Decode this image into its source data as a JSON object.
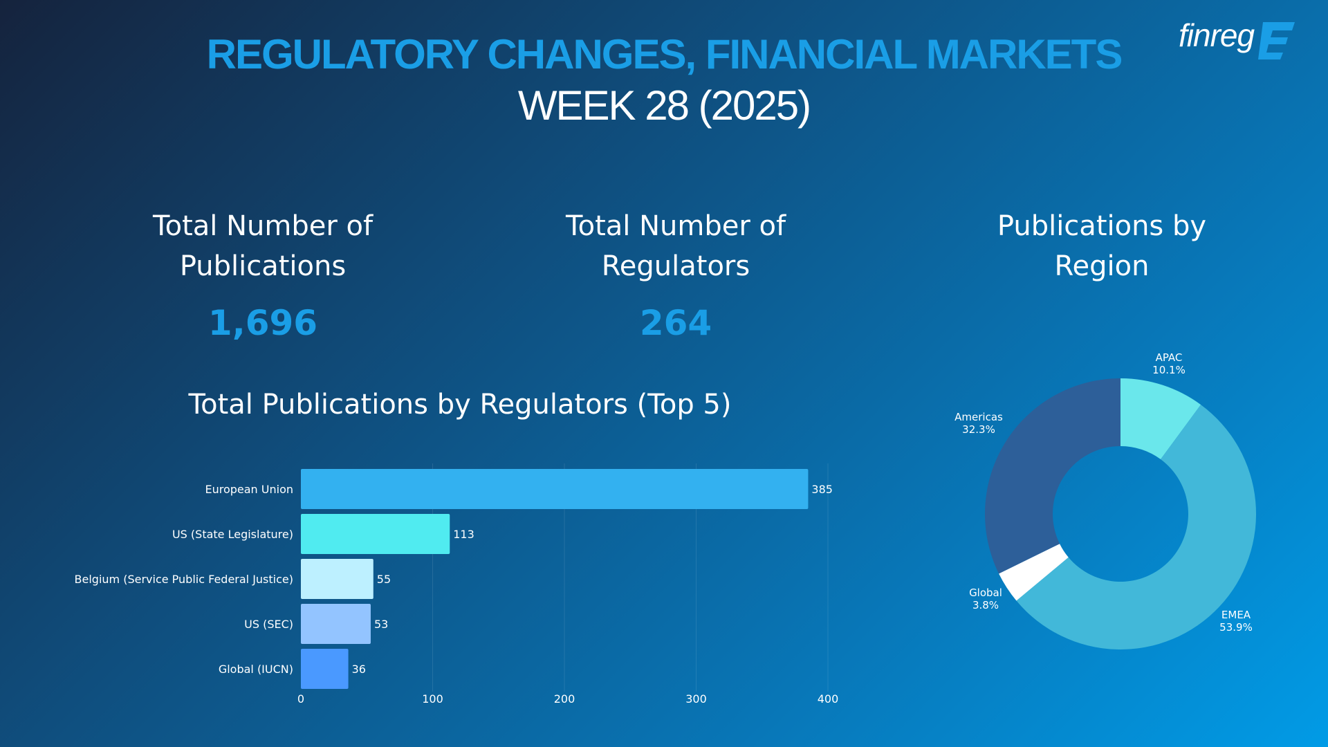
{
  "header": {
    "title": "REGULATORY CHANGES, FINANCIAL MARKETS",
    "subtitle": "WEEK 28 (2025)",
    "logo_text": "finreg",
    "logo_mark": "E"
  },
  "kpis": {
    "publications": {
      "label": "Total Number of\nPublications",
      "value": "1,696"
    },
    "regulators": {
      "label": "Total Number of\nRegulators",
      "value": "264"
    }
  },
  "region_chart_heading": "Publications by\nRegion",
  "colors": {
    "accent": "#1a9ee6",
    "bar_series": [
      "#33b1f0",
      "#50ebf0",
      "#bdf0ff",
      "#93c4ff",
      "#4a99ff"
    ],
    "donut": {
      "APAC": "#6ae7eb",
      "EMEA": "#42b8d9",
      "Global": "#ffffff",
      "Americas": "#2d5f99"
    }
  },
  "chart_data": [
    {
      "type": "bar",
      "orientation": "horizontal",
      "title": "Total Publications by Regulators (Top 5)",
      "categories": [
        "European Union",
        "US (State Legislature)",
        "Belgium (Service Public Federal Justice)",
        "US (SEC)",
        "Global (IUCN)"
      ],
      "values": [
        385,
        113,
        55,
        53,
        36
      ],
      "xlim": [
        0,
        400
      ],
      "xticks": [
        0,
        100,
        200,
        300,
        400
      ],
      "xlabel": "",
      "ylabel": "",
      "grid": true
    },
    {
      "type": "pie",
      "donut": true,
      "title": "Publications by Region",
      "labels": [
        "APAC",
        "EMEA",
        "Global",
        "Americas"
      ],
      "values": [
        10.1,
        53.9,
        3.8,
        32.3
      ],
      "value_labels": [
        "10.1%",
        "53.9%",
        "3.8%",
        "32.3%"
      ]
    }
  ]
}
